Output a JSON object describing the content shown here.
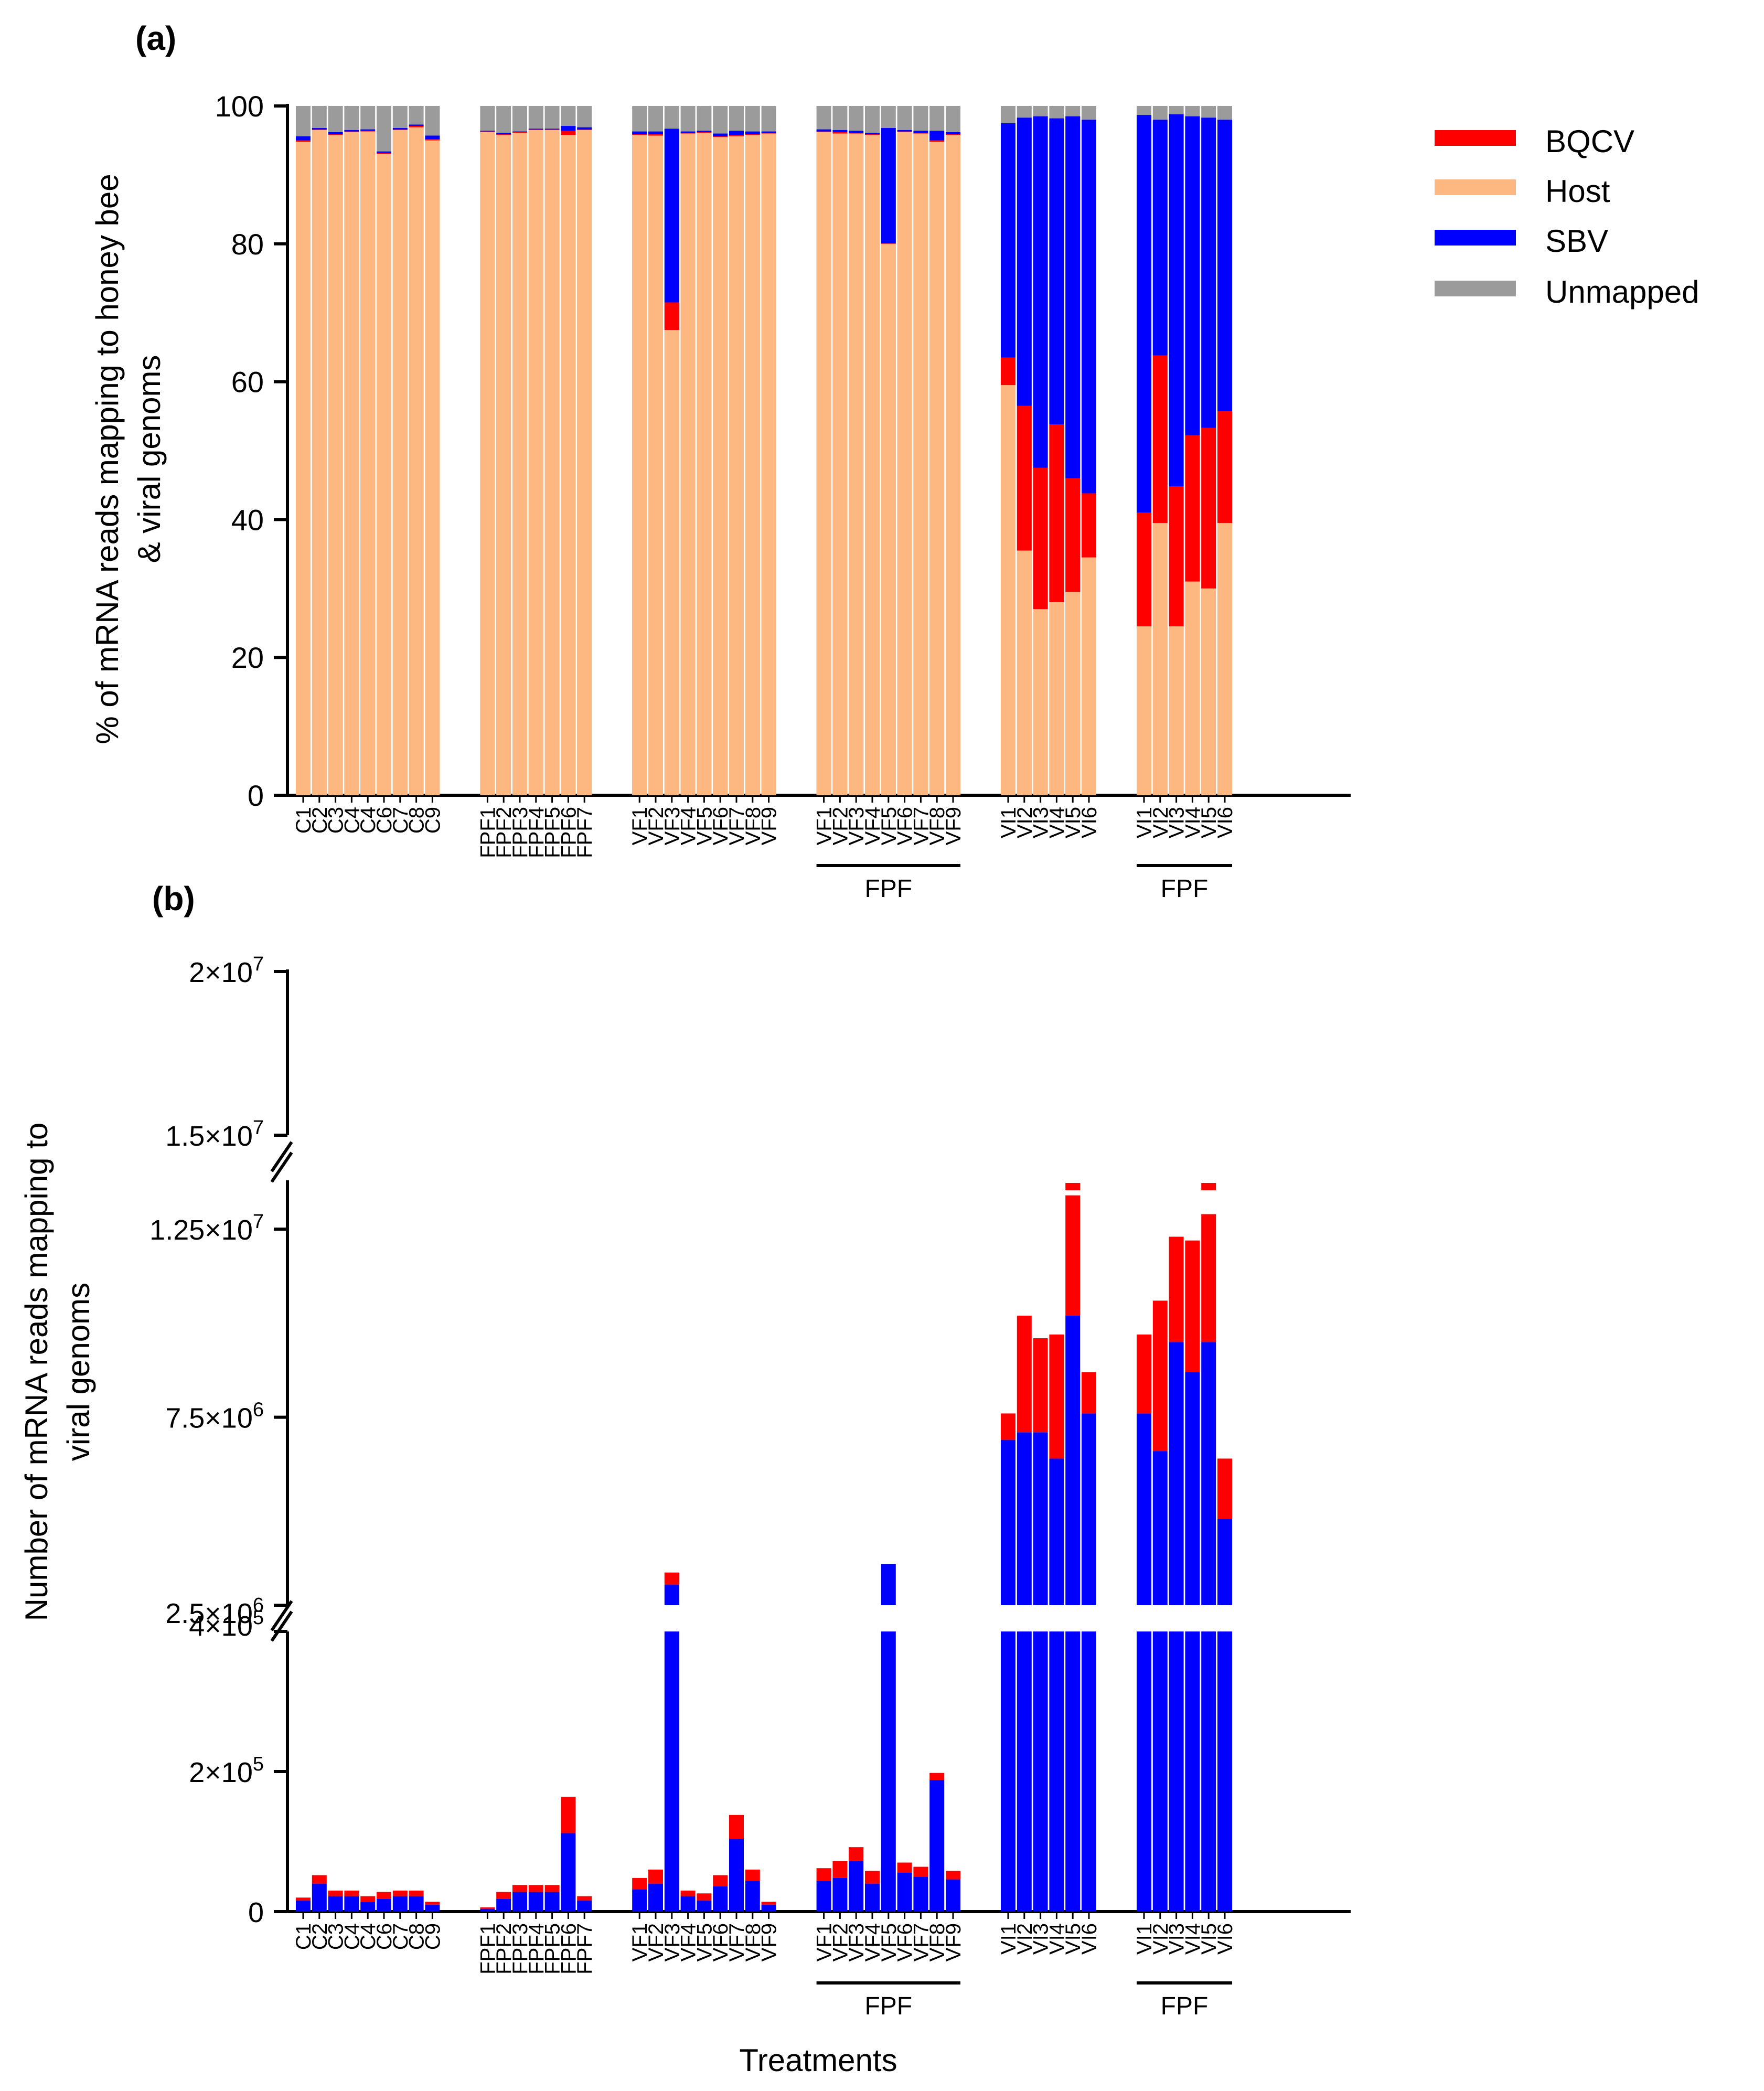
{
  "legend": [
    {
      "name": "BQCV",
      "color": "#ff0000"
    },
    {
      "name": "Host",
      "color": "#fdb882"
    },
    {
      "name": "SBV",
      "color": "#0000ff"
    },
    {
      "name": "Unmapped",
      "color": "#9b9b9b"
    }
  ],
  "chart_data": [
    {
      "panel": "(a)",
      "type": "bar",
      "stacked": true,
      "ylabel_lines": [
        "% of mRNA reads mapping to honey bee",
        "& viral genoms"
      ],
      "ylim": [
        0,
        100
      ],
      "yticks": [
        "0",
        "20",
        "40",
        "60",
        "80",
        "100"
      ],
      "group_label": "FPF",
      "groups": [
        {
          "name": "C",
          "fpf": false,
          "categories": [
            "C1",
            "C2",
            "C3",
            "C4",
            "C4",
            "C6",
            "C7",
            "C8",
            "C9"
          ],
          "host": [
            94.8,
            96.5,
            95.8,
            96.2,
            96.3,
            93.0,
            96.5,
            96.9,
            95.0
          ],
          "bqcv": [
            0.2,
            0.1,
            0.1,
            0.1,
            0.1,
            0.2,
            0.1,
            0.2,
            0.2
          ],
          "sbv": [
            0.6,
            0.2,
            0.3,
            0.2,
            0.2,
            0.2,
            0.2,
            0.2,
            0.5
          ]
        },
        {
          "name": "FPF",
          "fpf": false,
          "categories": [
            "FPF1",
            "FPF2",
            "FPF3",
            "FPF4",
            "FPF5",
            "FPF6",
            "FPF7"
          ],
          "host": [
            96.2,
            95.8,
            96.1,
            96.5,
            96.5,
            95.8,
            96.5
          ],
          "bqcv": [
            0.1,
            0.1,
            0.1,
            0.1,
            0.1,
            0.6,
            0.1
          ],
          "sbv": [
            0.1,
            0.2,
            0.1,
            0.1,
            0.1,
            0.7,
            0.3
          ]
        },
        {
          "name": "VF",
          "fpf": false,
          "categories": [
            "VF1",
            "VF2",
            "VF3",
            "VF4",
            "VF5",
            "VF6",
            "VF7",
            "VF8",
            "VF9"
          ],
          "host": [
            95.8,
            95.7,
            67.5,
            96.0,
            96.1,
            95.5,
            95.6,
            95.8,
            96.0
          ],
          "bqcv": [
            0.1,
            0.2,
            4.0,
            0.1,
            0.1,
            0.1,
            0.2,
            0.1,
            0.1
          ],
          "sbv": [
            0.4,
            0.4,
            25.2,
            0.2,
            0.2,
            0.4,
            0.6,
            0.4,
            0.2
          ]
        },
        {
          "name": "VF-FPF",
          "fpf": true,
          "categories": [
            "VF1",
            "VF2",
            "VF3",
            "VF4",
            "VF5",
            "VF6",
            "VF7",
            "VF8",
            "VF9"
          ],
          "host": [
            96.2,
            96.0,
            96.0,
            95.8,
            80.0,
            96.2,
            96.0,
            94.8,
            95.8
          ],
          "bqcv": [
            0.1,
            0.2,
            0.1,
            0.1,
            0.1,
            0.1,
            0.1,
            0.2,
            0.1
          ],
          "sbv": [
            0.3,
            0.3,
            0.3,
            0.2,
            16.7,
            0.2,
            0.3,
            1.4,
            0.3
          ]
        },
        {
          "name": "VI",
          "fpf": false,
          "categories": [
            "VI1",
            "VI2",
            "VI3",
            "VI4",
            "VI5",
            "VI6"
          ],
          "host": [
            59.5,
            35.5,
            27.0,
            28.0,
            29.5,
            34.5
          ],
          "bqcv": [
            4.0,
            21.0,
            20.5,
            25.8,
            16.5,
            9.3
          ],
          "sbv": [
            34.0,
            41.8,
            51.0,
            44.4,
            52.5,
            54.2
          ]
        },
        {
          "name": "VI-FPF",
          "fpf": true,
          "categories": [
            "VI1",
            "VI2",
            "VI3",
            "VI4",
            "VI5",
            "VI6"
          ],
          "host": [
            24.5,
            39.5,
            24.5,
            31.0,
            30.0,
            39.5
          ],
          "bqcv": [
            16.5,
            24.3,
            20.3,
            21.2,
            23.3,
            16.2
          ],
          "sbv": [
            57.7,
            34.2,
            54.0,
            46.3,
            45.0,
            42.3
          ]
        }
      ]
    },
    {
      "panel": "(b)",
      "type": "bar",
      "stacked": true,
      "ylabel_lines": [
        "Number of mRNA reads  mapping to",
        "viral genoms"
      ],
      "xlabel": "Treatments",
      "yticks": [
        "0",
        "2×10⁵",
        "4×10⁵",
        "2.5×10⁶",
        "7.5×10⁶",
        "1.25×10⁷",
        "1.5×10⁷",
        "2×10⁷"
      ],
      "axis_segments": [
        {
          "range": [
            0,
            400000
          ]
        },
        {
          "range": [
            2500000,
            13800000
          ]
        },
        {
          "range": [
            15000000,
            20000000
          ]
        }
      ],
      "group_label": "FPF",
      "groups": [
        {
          "name": "C",
          "fpf": false,
          "categories": [
            "C1",
            "C2",
            "C3",
            "C4",
            "C4",
            "C6",
            "C7",
            "C8",
            "C9"
          ],
          "sbv": [
            16000,
            40000,
            22000,
            22000,
            14000,
            18000,
            22000,
            22000,
            10000
          ],
          "bqcv": [
            4000,
            12000,
            8000,
            8000,
            8000,
            10000,
            8000,
            8000,
            4000
          ]
        },
        {
          "name": "FPF",
          "fpf": false,
          "categories": [
            "FPF1",
            "FPF2",
            "FPF3",
            "FPF4",
            "FPF5",
            "FPF6",
            "FPF7"
          ],
          "sbv": [
            4000,
            18000,
            28000,
            28000,
            28000,
            112000,
            16000
          ],
          "bqcv": [
            2000,
            10000,
            10000,
            10000,
            10000,
            52000,
            6000
          ]
        },
        {
          "name": "VF",
          "fpf": false,
          "categories": [
            "VF1",
            "VF2",
            "VF3",
            "VF4",
            "VF5",
            "VF6",
            "VF7",
            "VF8",
            "VF9"
          ],
          "sbv": [
            32000,
            40000,
            3050000,
            22000,
            16000,
            36000,
            104000,
            44000,
            10000
          ],
          "bqcv": [
            16000,
            20000,
            320000,
            8000,
            10000,
            16000,
            34000,
            16000,
            4000
          ]
        },
        {
          "name": "VF-FPF",
          "fpf": true,
          "categories": [
            "VF1",
            "VF2",
            "VF3",
            "VF4",
            "VF5",
            "VF6",
            "VF7",
            "VF8",
            "VF9"
          ],
          "sbv": [
            44000,
            48000,
            72000,
            40000,
            3600000,
            56000,
            50000,
            188000,
            46000
          ],
          "bqcv": [
            18000,
            24000,
            20000,
            18000,
            0,
            14000,
            14000,
            10000,
            12000
          ]
        },
        {
          "name": "VI",
          "fpf": false,
          "categories": [
            "VI1",
            "VI2",
            "VI3",
            "VI4",
            "VI5",
            "VI6"
          ],
          "sbv": [
            6900000,
            7100000,
            7100000,
            6400000,
            10200000,
            7600000
          ],
          "bqcv": [
            700000,
            3100000,
            2500000,
            3300000,
            3200000,
            1100000
          ]
        },
        {
          "name": "VI-FPF",
          "fpf": true,
          "categories": [
            "VI1",
            "VI2",
            "VI3",
            "VI4",
            "VI5",
            "VI6"
          ],
          "sbv": [
            7600000,
            6600000,
            9500000,
            8700000,
            9500000,
            4800000
          ],
          "bqcv": [
            2100000,
            4000000,
            2800000,
            3500000,
            3400000,
            1600000
          ]
        }
      ],
      "overflow_caps": [
        {
          "group": "VI",
          "index": 4
        },
        {
          "group": "VI-FPF",
          "index": 4
        }
      ]
    }
  ]
}
